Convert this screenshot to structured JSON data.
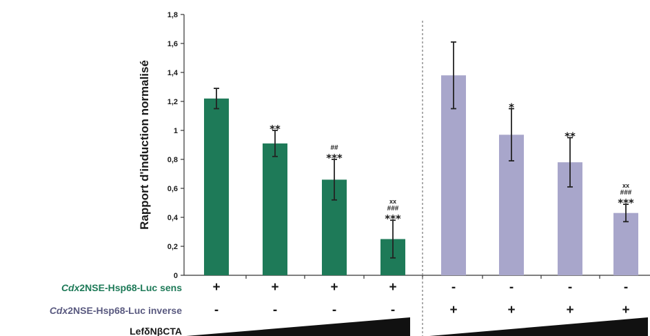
{
  "chart_data": {
    "type": "bar",
    "ylabel": "Rapport d'induction normalisé",
    "ylim": [
      0,
      1.8
    ],
    "yticks": [
      "0",
      "0,2",
      "0,4",
      "0,6",
      "0,8",
      "1",
      "1,2",
      "1,4",
      "1,6",
      "1,8"
    ],
    "grid": false,
    "groups": [
      {
        "color": "#1e7a58",
        "bars": [
          {
            "value": 1.22,
            "err": 0.07,
            "sig": [
              "",
              "",
              ""
            ]
          },
          {
            "value": 0.91,
            "err": 0.09,
            "sig": [
              "**",
              "",
              ""
            ]
          },
          {
            "value": 0.66,
            "err": 0.14,
            "sig": [
              "***",
              "##",
              ""
            ]
          },
          {
            "value": 0.25,
            "err": 0.13,
            "sig": [
              "***",
              "###",
              "xx"
            ]
          }
        ]
      },
      {
        "color": "#a8a6cb",
        "bars": [
          {
            "value": 1.38,
            "err": 0.23,
            "sig": [
              "",
              "",
              ""
            ]
          },
          {
            "value": 0.97,
            "err": 0.18,
            "sig": [
              "*",
              "",
              ""
            ]
          },
          {
            "value": 0.78,
            "err": 0.17,
            "sig": [
              "**",
              "",
              ""
            ]
          },
          {
            "value": 0.43,
            "err": 0.06,
            "sig": [
              "***",
              "###",
              "xx"
            ]
          }
        ]
      }
    ],
    "rows": [
      {
        "label_italic": "Cdx",
        "label_rest": "2NSE-Hsp68-Luc sens",
        "color": "#1e7a58",
        "signs": [
          "+",
          "+",
          "+",
          "+",
          "-",
          "-",
          "-",
          "-"
        ]
      },
      {
        "label_italic": "Cdx",
        "label_rest": "2NSE-Hsp68-Luc inverse",
        "color": "#5a5a80",
        "signs": [
          "-",
          "-",
          "-",
          "-",
          "+",
          "+",
          "+",
          "+"
        ]
      },
      {
        "label_italic": "",
        "label_rest": "LefδNβCTA",
        "color": "#1a1a1a",
        "signs": []
      }
    ]
  }
}
